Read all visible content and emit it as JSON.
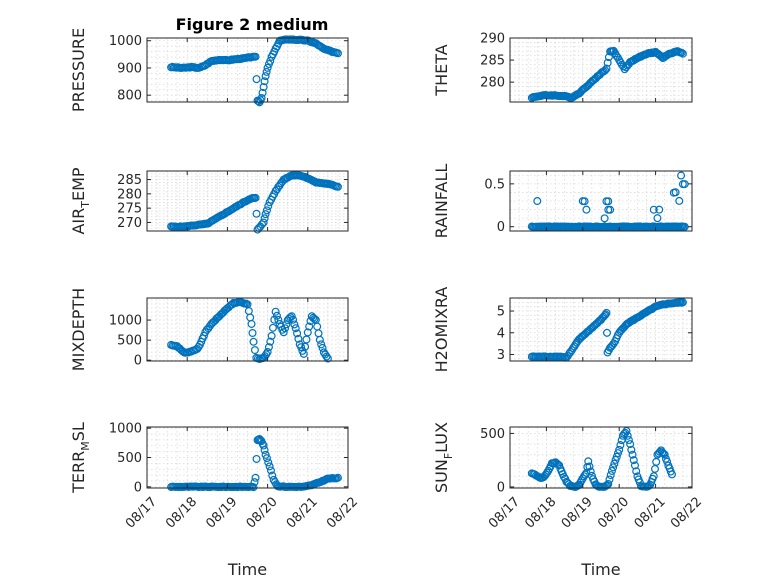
{
  "figure": {
    "title": "Figure 2 medium"
  },
  "chart_data": [
    {
      "type": "scatter",
      "title": "Figure 2 medium",
      "ylabel": "PRESSURE",
      "ylabel_sub": "",
      "xlabel": "",
      "xlim": [
        17,
        22
      ],
      "ylim": [
        775,
        1010
      ],
      "yticks": [
        800,
        900,
        1000
      ],
      "xticks": [
        17,
        18,
        19,
        20,
        21,
        22
      ],
      "show_xticklabels": false,
      "grid": true,
      "anchors": [
        [
          17.6,
          903
        ],
        [
          17.9,
          900
        ],
        [
          18.1,
          903
        ],
        [
          18.3,
          900
        ],
        [
          18.45,
          910
        ],
        [
          18.6,
          925
        ],
        [
          18.8,
          930
        ],
        [
          19.0,
          928
        ],
        [
          19.2,
          932
        ],
        [
          19.4,
          935
        ],
        [
          19.6,
          940
        ],
        [
          19.7,
          940
        ],
        [
          19.75,
          780
        ],
        [
          19.8,
          775
        ],
        [
          19.85,
          790
        ],
        [
          19.9,
          830
        ],
        [
          19.95,
          870
        ],
        [
          20.0,
          900
        ],
        [
          20.1,
          940
        ],
        [
          20.2,
          970
        ],
        [
          20.3,
          1000
        ],
        [
          20.5,
          1005
        ],
        [
          20.8,
          1003
        ],
        [
          21.0,
          1000
        ],
        [
          21.2,
          990
        ],
        [
          21.4,
          970
        ],
        [
          21.6,
          960
        ],
        [
          21.75,
          955
        ]
      ]
    },
    {
      "type": "scatter",
      "title": "",
      "ylabel": "THETA",
      "ylabel_sub": "",
      "xlabel": "",
      "xlim": [
        17,
        22
      ],
      "ylim": [
        275.5,
        290
      ],
      "yticks": [
        280,
        285,
        290
      ],
      "xticks": [
        17,
        18,
        19,
        20,
        21,
        22
      ],
      "show_xticklabels": false,
      "grid": true,
      "anchors": [
        [
          17.6,
          276.5
        ],
        [
          17.9,
          277
        ],
        [
          18.2,
          277
        ],
        [
          18.5,
          276.8
        ],
        [
          18.7,
          276.5
        ],
        [
          18.9,
          277.5
        ],
        [
          19.1,
          279
        ],
        [
          19.3,
          280.5
        ],
        [
          19.5,
          282
        ],
        [
          19.65,
          283
        ],
        [
          19.75,
          287
        ],
        [
          19.85,
          287
        ],
        [
          20.0,
          285
        ],
        [
          20.15,
          283
        ],
        [
          20.3,
          284.5
        ],
        [
          20.5,
          285.5
        ],
        [
          20.8,
          286.5
        ],
        [
          21.0,
          286.8
        ],
        [
          21.2,
          285.5
        ],
        [
          21.4,
          286.5
        ],
        [
          21.6,
          287
        ],
        [
          21.75,
          286.5
        ]
      ]
    },
    {
      "type": "scatter",
      "title": "",
      "ylabel": "AIR",
      "ylabel_sub": "T",
      "ylabel_tail": "EMP",
      "xlabel": "",
      "xlim": [
        17,
        22
      ],
      "ylim": [
        267,
        288
      ],
      "yticks": [
        270,
        275,
        280,
        285
      ],
      "xticks": [
        17,
        18,
        19,
        20,
        21,
        22
      ],
      "show_xticklabels": false,
      "grid": true,
      "anchors": [
        [
          17.6,
          268.5
        ],
        [
          17.9,
          268.5
        ],
        [
          18.2,
          269
        ],
        [
          18.5,
          269.5
        ],
        [
          18.8,
          272
        ],
        [
          19.1,
          274.5
        ],
        [
          19.4,
          277
        ],
        [
          19.6,
          278.5
        ],
        [
          19.7,
          278.5
        ],
        [
          19.75,
          267.5
        ],
        [
          19.82,
          268.5
        ],
        [
          19.9,
          270
        ],
        [
          19.95,
          273
        ],
        [
          20.05,
          277
        ],
        [
          20.2,
          281
        ],
        [
          20.4,
          285
        ],
        [
          20.6,
          286.5
        ],
        [
          20.8,
          286.5
        ],
        [
          21.0,
          285.5
        ],
        [
          21.2,
          284
        ],
        [
          21.5,
          283.5
        ],
        [
          21.75,
          282.5
        ]
      ]
    },
    {
      "type": "scatter",
      "title": "",
      "ylabel": "RAINFALL",
      "ylabel_sub": "",
      "xlabel": "",
      "xlim": [
        17,
        22
      ],
      "ylim": [
        -0.05,
        0.65
      ],
      "yticks": [
        0,
        0.5
      ],
      "xticks": [
        17,
        18,
        19,
        20,
        21,
        22
      ],
      "show_xticklabels": false,
      "grid": true,
      "anchors": [
        [
          17.6,
          0
        ],
        [
          21.8,
          0
        ]
      ],
      "extra_points": [
        [
          17.75,
          0.3
        ],
        [
          19.0,
          0.3
        ],
        [
          19.05,
          0.3
        ],
        [
          19.1,
          0.2
        ],
        [
          19.6,
          0.1
        ],
        [
          19.7,
          0.2
        ],
        [
          19.75,
          0.2
        ],
        [
          19.65,
          0.3
        ],
        [
          19.7,
          0.3
        ],
        [
          20.95,
          0.2
        ],
        [
          21.05,
          0.1
        ],
        [
          21.1,
          0.2
        ],
        [
          21.5,
          0.4
        ],
        [
          21.55,
          0.4
        ],
        [
          21.7,
          0.6
        ],
        [
          21.75,
          0.5
        ],
        [
          21.8,
          0.5
        ],
        [
          21.6,
          0
        ],
        [
          21.65,
          0.3
        ]
      ]
    },
    {
      "type": "scatter",
      "title": "",
      "ylabel": "MIXDEPTH",
      "ylabel_sub": "",
      "xlabel": "",
      "xlim": [
        17,
        22
      ],
      "ylim": [
        -20,
        1550
      ],
      "yticks": [
        0,
        500,
        1000
      ],
      "xticks": [
        17,
        18,
        19,
        20,
        21,
        22
      ],
      "show_xticklabels": false,
      "grid": true,
      "anchors": [
        [
          17.6,
          380
        ],
        [
          17.75,
          350
        ],
        [
          17.85,
          250
        ],
        [
          17.95,
          180
        ],
        [
          18.1,
          220
        ],
        [
          18.25,
          280
        ],
        [
          18.35,
          450
        ],
        [
          18.45,
          700
        ],
        [
          18.6,
          900
        ],
        [
          18.8,
          1100
        ],
        [
          19.0,
          1300
        ],
        [
          19.15,
          1420
        ],
        [
          19.3,
          1450
        ],
        [
          19.5,
          1400
        ],
        [
          19.6,
          900
        ],
        [
          19.65,
          450
        ],
        [
          19.72,
          60
        ],
        [
          19.8,
          30
        ],
        [
          19.9,
          60
        ],
        [
          20.0,
          200
        ],
        [
          20.1,
          600
        ],
        [
          20.2,
          1200
        ],
        [
          20.3,
          900
        ],
        [
          20.4,
          700
        ],
        [
          20.5,
          1000
        ],
        [
          20.6,
          1100
        ],
        [
          20.7,
          800
        ],
        [
          20.8,
          400
        ],
        [
          20.9,
          150
        ],
        [
          21.0,
          700
        ],
        [
          21.1,
          1100
        ],
        [
          21.2,
          1000
        ],
        [
          21.3,
          500
        ],
        [
          21.4,
          200
        ],
        [
          21.5,
          50
        ]
      ]
    },
    {
      "type": "scatter",
      "title": "",
      "ylabel": "H2OMIXRA",
      "ylabel_sub": "",
      "xlabel": "",
      "xlim": [
        17,
        22
      ],
      "ylim": [
        2.7,
        5.6
      ],
      "yticks": [
        3,
        4,
        5
      ],
      "xticks": [
        17,
        18,
        19,
        20,
        21,
        22
      ],
      "show_xticklabels": false,
      "grid": true,
      "anchors": [
        [
          17.6,
          2.9
        ],
        [
          18.0,
          2.9
        ],
        [
          18.4,
          2.9
        ],
        [
          18.55,
          2.85
        ],
        [
          18.7,
          3.2
        ],
        [
          18.9,
          3.7
        ],
        [
          19.1,
          4.0
        ],
        [
          19.3,
          4.3
        ],
        [
          19.5,
          4.6
        ],
        [
          19.6,
          4.8
        ],
        [
          19.65,
          4.9
        ],
        [
          19.68,
          3.1
        ],
        [
          19.75,
          3.3
        ],
        [
          19.85,
          3.5
        ],
        [
          20.0,
          4.0
        ],
        [
          20.2,
          4.4
        ],
        [
          20.4,
          4.6
        ],
        [
          20.6,
          4.8
        ],
        [
          20.8,
          5.0
        ],
        [
          21.0,
          5.2
        ],
        [
          21.2,
          5.3
        ],
        [
          21.4,
          5.35
        ],
        [
          21.75,
          5.4
        ]
      ]
    },
    {
      "type": "scatter",
      "title": "",
      "ylabel": "TERR",
      "ylabel_sub": "M",
      "ylabel_tail": "SL",
      "xlabel": "Time",
      "xlim": [
        17,
        22
      ],
      "ylim": [
        -20,
        1020
      ],
      "yticks": [
        0,
        500,
        1000
      ],
      "xticks": [
        17,
        18,
        19,
        20,
        21,
        22
      ],
      "show_xticklabels": true,
      "grid": true,
      "anchors": [
        [
          17.6,
          0
        ],
        [
          18.0,
          0
        ],
        [
          18.5,
          0
        ],
        [
          19.0,
          0
        ],
        [
          19.5,
          0
        ],
        [
          19.65,
          0
        ],
        [
          19.7,
          150
        ],
        [
          19.75,
          800
        ],
        [
          19.8,
          820
        ],
        [
          19.85,
          780
        ],
        [
          19.9,
          700
        ],
        [
          19.95,
          550
        ],
        [
          20.05,
          350
        ],
        [
          20.15,
          120
        ],
        [
          20.25,
          10
        ],
        [
          20.5,
          0
        ],
        [
          20.9,
          0
        ],
        [
          21.1,
          30
        ],
        [
          21.3,
          80
        ],
        [
          21.5,
          140
        ],
        [
          21.75,
          150
        ]
      ]
    },
    {
      "type": "scatter",
      "title": "",
      "ylabel": "SUN",
      "ylabel_sub": "F",
      "ylabel_tail": "LUX",
      "xlabel": "Time",
      "xlim": [
        17,
        22
      ],
      "ylim": [
        -10,
        560
      ],
      "yticks": [
        0,
        500
      ],
      "xticks": [
        17,
        18,
        19,
        20,
        21,
        22
      ],
      "show_xticklabels": true,
      "grid": true,
      "anchors": [
        [
          17.6,
          130
        ],
        [
          17.75,
          100
        ],
        [
          17.85,
          80
        ],
        [
          17.95,
          100
        ],
        [
          18.05,
          150
        ],
        [
          18.15,
          220
        ],
        [
          18.25,
          230
        ],
        [
          18.35,
          200
        ],
        [
          18.45,
          120
        ],
        [
          18.55,
          50
        ],
        [
          18.65,
          10
        ],
        [
          18.8,
          0
        ],
        [
          18.9,
          20
        ],
        [
          19.0,
          80
        ],
        [
          19.1,
          130
        ],
        [
          19.15,
          240
        ],
        [
          19.25,
          100
        ],
        [
          19.35,
          20
        ],
        [
          19.45,
          0
        ],
        [
          19.6,
          0
        ],
        [
          19.7,
          30
        ],
        [
          19.8,
          150
        ],
        [
          19.9,
          250
        ],
        [
          20.0,
          350
        ],
        [
          20.1,
          480
        ],
        [
          20.2,
          520
        ],
        [
          20.3,
          400
        ],
        [
          20.4,
          250
        ],
        [
          20.5,
          100
        ],
        [
          20.6,
          10
        ],
        [
          20.75,
          0
        ],
        [
          20.85,
          20
        ],
        [
          20.95,
          100
        ],
        [
          21.05,
          300
        ],
        [
          21.15,
          340
        ],
        [
          21.25,
          300
        ],
        [
          21.35,
          200
        ],
        [
          21.45,
          120
        ]
      ]
    }
  ],
  "x_tick_labels": [
    "08/17",
    "08/18",
    "08/19",
    "08/20",
    "08/21",
    "08/22"
  ],
  "colors": {
    "marker": "#0072BD",
    "axis": "#262626",
    "grid": "#d9d9d9"
  }
}
